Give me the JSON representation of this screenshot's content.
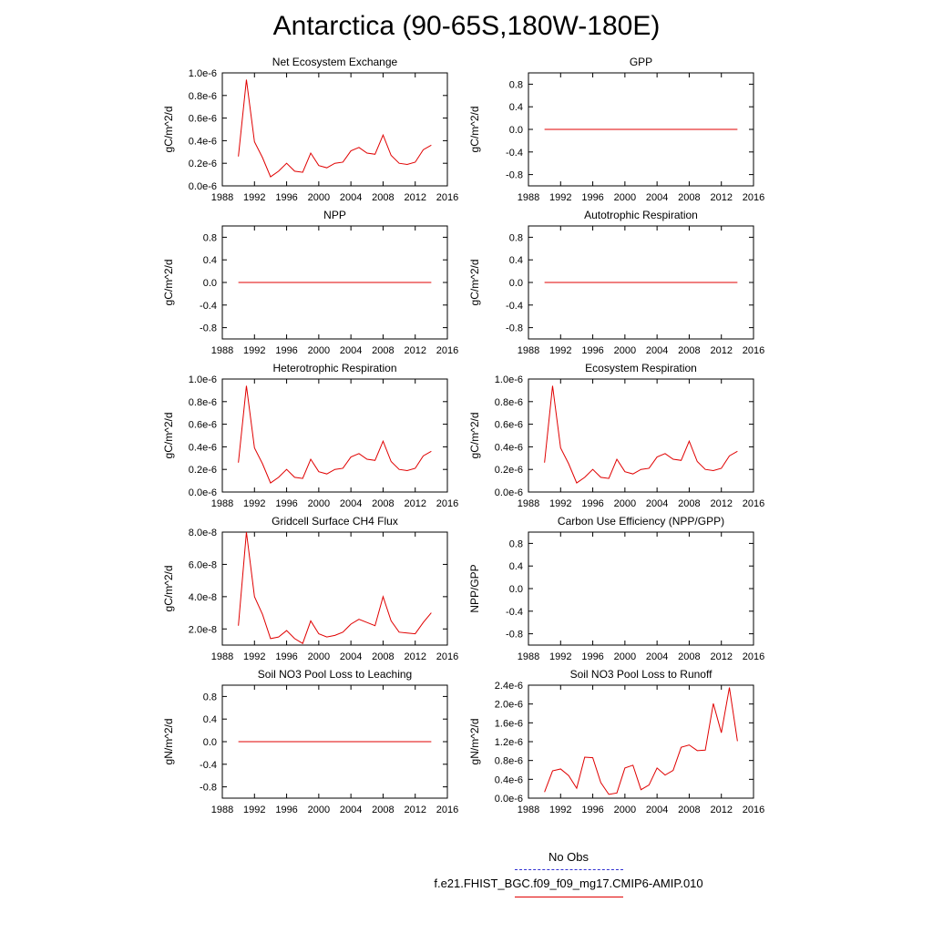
{
  "title": "Antarctica (90-65S,180W-180E)",
  "colors": {
    "series": "#e00000",
    "obs": "#3232d2",
    "axis": "#000000"
  },
  "legend": {
    "obs_label": "No Obs",
    "case_label": "f.e21.FHIST_BGC.f09_f09_mg17.CMIP6-AMIP.010"
  },
  "chart_data": [
    {
      "type": "line",
      "title": "Net Ecosystem Exchange",
      "xlabel": "",
      "ylabel": "gC/m^2/d",
      "xlim": [
        1988,
        2016
      ],
      "xticks": [
        1988,
        1992,
        1996,
        2000,
        2004,
        2008,
        2012,
        2016
      ],
      "ylim": [
        0,
        1.0
      ],
      "scale": 1e-06,
      "yticks": [
        0,
        0.2,
        0.4,
        0.6,
        0.8,
        1.0
      ],
      "ytick_labels": [
        "0.0e-6",
        "0.2e-6",
        "0.4e-6",
        "0.6e-6",
        "0.8e-6",
        "1.0e-6"
      ],
      "x": [
        1990,
        1991,
        1992,
        1993,
        1994,
        1995,
        1996,
        1997,
        1998,
        1999,
        2000,
        2001,
        2002,
        2003,
        2004,
        2005,
        2006,
        2007,
        2008,
        2009,
        2010,
        2011,
        2012,
        2013,
        2014
      ],
      "values": [
        0.26,
        0.94,
        0.39,
        0.25,
        0.08,
        0.13,
        0.2,
        0.13,
        0.12,
        0.29,
        0.18,
        0.16,
        0.2,
        0.21,
        0.31,
        0.34,
        0.29,
        0.28,
        0.45,
        0.27,
        0.2,
        0.19,
        0.21,
        0.32,
        0.36
      ]
    },
    {
      "type": "line",
      "title": "GPP",
      "xlabel": "",
      "ylabel": "gC/m^2/d",
      "xlim": [
        1988,
        2016
      ],
      "xticks": [
        1988,
        1992,
        1996,
        2000,
        2004,
        2008,
        2012,
        2016
      ],
      "ylim": [
        -1.0,
        1.0
      ],
      "yticks": [
        -0.8,
        -0.4,
        0.0,
        0.4,
        0.8
      ],
      "ytick_labels": [
        "-0.8",
        "-0.4",
        "0.0",
        "0.4",
        "0.8"
      ],
      "x": [
        1990,
        2014
      ],
      "values": [
        0,
        0
      ]
    },
    {
      "type": "line",
      "title": "NPP",
      "xlabel": "",
      "ylabel": "gC/m^2/d",
      "xlim": [
        1988,
        2016
      ],
      "xticks": [
        1988,
        1992,
        1996,
        2000,
        2004,
        2008,
        2012,
        2016
      ],
      "ylim": [
        -1.0,
        1.0
      ],
      "yticks": [
        -0.8,
        -0.4,
        0.0,
        0.4,
        0.8
      ],
      "ytick_labels": [
        "-0.8",
        "-0.4",
        "0.0",
        "0.4",
        "0.8"
      ],
      "x": [
        1990,
        2014
      ],
      "values": [
        0,
        0
      ]
    },
    {
      "type": "line",
      "title": "Autotrophic Respiration",
      "xlabel": "",
      "ylabel": "gC/m^2/d",
      "xlim": [
        1988,
        2016
      ],
      "xticks": [
        1988,
        1992,
        1996,
        2000,
        2004,
        2008,
        2012,
        2016
      ],
      "ylim": [
        -1.0,
        1.0
      ],
      "yticks": [
        -0.8,
        -0.4,
        0.0,
        0.4,
        0.8
      ],
      "ytick_labels": [
        "-0.8",
        "-0.4",
        "0.0",
        "0.4",
        "0.8"
      ],
      "x": [
        1990,
        2014
      ],
      "values": [
        0,
        0
      ]
    },
    {
      "type": "line",
      "title": "Heterotrophic Respiration",
      "xlabel": "",
      "ylabel": "gC/m^2/d",
      "xlim": [
        1988,
        2016
      ],
      "xticks": [
        1988,
        1992,
        1996,
        2000,
        2004,
        2008,
        2012,
        2016
      ],
      "ylim": [
        0,
        1.0
      ],
      "scale": 1e-06,
      "yticks": [
        0,
        0.2,
        0.4,
        0.6,
        0.8,
        1.0
      ],
      "ytick_labels": [
        "0.0e-6",
        "0.2e-6",
        "0.4e-6",
        "0.6e-6",
        "0.8e-6",
        "1.0e-6"
      ],
      "x": [
        1990,
        1991,
        1992,
        1993,
        1994,
        1995,
        1996,
        1997,
        1998,
        1999,
        2000,
        2001,
        2002,
        2003,
        2004,
        2005,
        2006,
        2007,
        2008,
        2009,
        2010,
        2011,
        2012,
        2013,
        2014
      ],
      "values": [
        0.26,
        0.94,
        0.39,
        0.25,
        0.08,
        0.13,
        0.2,
        0.13,
        0.12,
        0.29,
        0.18,
        0.16,
        0.2,
        0.21,
        0.31,
        0.34,
        0.29,
        0.28,
        0.45,
        0.27,
        0.2,
        0.19,
        0.21,
        0.32,
        0.36
      ]
    },
    {
      "type": "line",
      "title": "Ecosystem Respiration",
      "xlabel": "",
      "ylabel": "gC/m^2/d",
      "xlim": [
        1988,
        2016
      ],
      "xticks": [
        1988,
        1992,
        1996,
        2000,
        2004,
        2008,
        2012,
        2016
      ],
      "ylim": [
        0,
        1.0
      ],
      "scale": 1e-06,
      "yticks": [
        0,
        0.2,
        0.4,
        0.6,
        0.8,
        1.0
      ],
      "ytick_labels": [
        "0.0e-6",
        "0.2e-6",
        "0.4e-6",
        "0.6e-6",
        "0.8e-6",
        "1.0e-6"
      ],
      "x": [
        1990,
        1991,
        1992,
        1993,
        1994,
        1995,
        1996,
        1997,
        1998,
        1999,
        2000,
        2001,
        2002,
        2003,
        2004,
        2005,
        2006,
        2007,
        2008,
        2009,
        2010,
        2011,
        2012,
        2013,
        2014
      ],
      "values": [
        0.26,
        0.94,
        0.39,
        0.25,
        0.08,
        0.13,
        0.2,
        0.13,
        0.12,
        0.29,
        0.18,
        0.16,
        0.2,
        0.21,
        0.31,
        0.34,
        0.29,
        0.28,
        0.45,
        0.27,
        0.2,
        0.19,
        0.21,
        0.32,
        0.36
      ]
    },
    {
      "type": "line",
      "title": "Gridcell Surface CH4 Flux",
      "xlabel": "",
      "ylabel": "gC/m^2/d",
      "xlim": [
        1988,
        2016
      ],
      "xticks": [
        1988,
        1992,
        1996,
        2000,
        2004,
        2008,
        2012,
        2016
      ],
      "ylim": [
        1.0,
        8.0
      ],
      "scale": 1e-08,
      "yticks": [
        2.0,
        4.0,
        6.0,
        8.0
      ],
      "ytick_labels": [
        "2.0e-8",
        "4.0e-8",
        "6.0e-8",
        "8.0e-8"
      ],
      "x": [
        1990,
        1991,
        1992,
        1993,
        1994,
        1995,
        1996,
        1997,
        1998,
        1999,
        2000,
        2001,
        2002,
        2003,
        2004,
        2005,
        2006,
        2007,
        2008,
        2009,
        2010,
        2011,
        2012,
        2013,
        2014
      ],
      "values": [
        2.2,
        8.0,
        4.0,
        2.9,
        1.4,
        1.5,
        1.9,
        1.4,
        1.1,
        2.5,
        1.7,
        1.5,
        1.6,
        1.8,
        2.3,
        2.6,
        2.4,
        2.2,
        4.0,
        2.5,
        1.8,
        1.75,
        1.7,
        2.4,
        3.0
      ]
    },
    {
      "type": "line",
      "title": "Carbon Use Efficiency (NPP/GPP)",
      "xlabel": "",
      "ylabel": "NPP/GPP",
      "xlim": [
        1988,
        2016
      ],
      "xticks": [
        1988,
        1992,
        1996,
        2000,
        2004,
        2008,
        2012,
        2016
      ],
      "ylim": [
        -1.0,
        1.0
      ],
      "yticks": [
        -0.8,
        -0.4,
        0.0,
        0.4,
        0.8
      ],
      "ytick_labels": [
        "-0.8",
        "-0.4",
        "0.0",
        "0.4",
        "0.8"
      ],
      "x": [],
      "values": []
    },
    {
      "type": "line",
      "title": "Soil NO3 Pool Loss to Leaching",
      "xlabel": "",
      "ylabel": "gN/m^2/d",
      "xlim": [
        1988,
        2016
      ],
      "xticks": [
        1988,
        1992,
        1996,
        2000,
        2004,
        2008,
        2012,
        2016
      ],
      "ylim": [
        -1.0,
        1.0
      ],
      "yticks": [
        -0.8,
        -0.4,
        0.0,
        0.4,
        0.8
      ],
      "ytick_labels": [
        "-0.8",
        "-0.4",
        "0.0",
        "0.4",
        "0.8"
      ],
      "x": [
        1990,
        2014
      ],
      "values": [
        0,
        0
      ]
    },
    {
      "type": "line",
      "title": "Soil NO3 Pool Loss to Runoff",
      "xlabel": "",
      "ylabel": "gN/m^2/d",
      "xlim": [
        1988,
        2016
      ],
      "xticks": [
        1988,
        1992,
        1996,
        2000,
        2004,
        2008,
        2012,
        2016
      ],
      "ylim": [
        0,
        2.4
      ],
      "scale": 1e-06,
      "yticks": [
        0,
        0.4,
        0.8,
        1.2,
        1.6,
        2.0,
        2.4
      ],
      "ytick_labels": [
        "0.0e-6",
        "0.4e-6",
        "0.8e-6",
        "1.2e-6",
        "1.6e-6",
        "2.0e-6",
        "2.4e-6"
      ],
      "x": [
        1990,
        1991,
        1992,
        1993,
        1994,
        1995,
        1996,
        1997,
        1998,
        1999,
        2000,
        2001,
        2002,
        2003,
        2004,
        2005,
        2006,
        2007,
        2008,
        2009,
        2010,
        2011,
        2012,
        2013,
        2014
      ],
      "values": [
        0.13,
        0.58,
        0.62,
        0.48,
        0.21,
        0.87,
        0.86,
        0.33,
        0.08,
        0.11,
        0.64,
        0.7,
        0.18,
        0.28,
        0.64,
        0.49,
        0.59,
        1.08,
        1.13,
        1.01,
        1.02,
        2.01,
        1.39,
        2.35,
        1.21
      ]
    }
  ]
}
